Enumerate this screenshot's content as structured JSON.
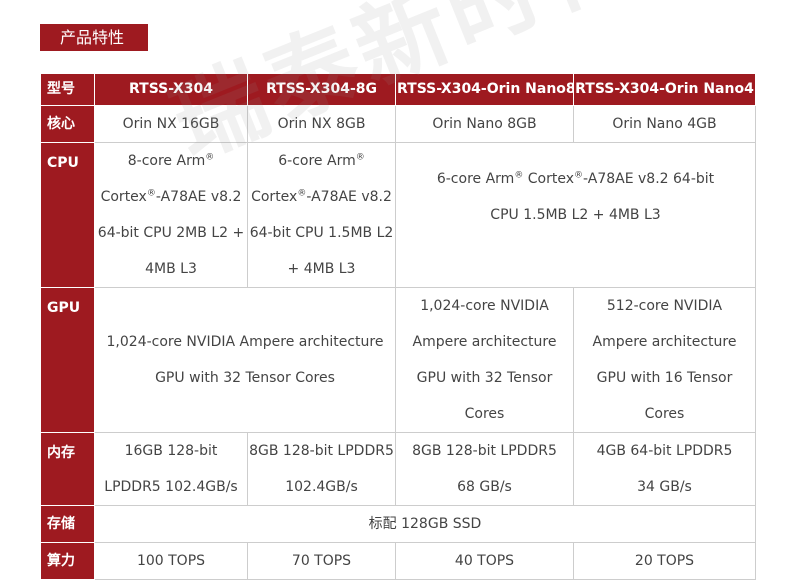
{
  "section_title": "产品特性",
  "watermark": "瑞泰新时代",
  "headers": [
    "型号",
    "RTSS-X304",
    "RTSS-X304-8G",
    "RTSS-X304-Orin Nano8",
    "RTSS-X304-Orin Nano4"
  ],
  "rows": {
    "core": {
      "label": "核心",
      "values": [
        "Orin NX 16GB",
        "Orin NX 8GB",
        "Orin Nano 8GB",
        "Orin Nano 4GB"
      ]
    },
    "cpu": {
      "label": "CPU",
      "col1": [
        "8-core Arm®",
        "Cortex®-A78AE v8.2",
        "64-bit CPU 2MB L2 +",
        "4MB L3"
      ],
      "col2": [
        "6-core Arm®",
        "Cortex®-A78AE v8.2",
        "64-bit CPU 1.5MB L2",
        "+ 4MB L3"
      ],
      "col34": [
        "6-core Arm® Cortex®-A78AE v8.2 64-bit",
        "CPU   1.5MB L2 + 4MB L3"
      ]
    },
    "gpu": {
      "label": "GPU",
      "col12": [
        "1,024-core NVIDIA Ampere architecture",
        "GPU    with 32 Tensor Cores"
      ],
      "col3": [
        "1,024-core NVIDIA",
        "Ampere architecture",
        "GPU with 32 Tensor",
        "Cores"
      ],
      "col4": [
        "512-core NVIDIA",
        "Ampere architecture",
        "GPU with 16 Tensor",
        "Cores"
      ]
    },
    "memory": {
      "label": "内存",
      "col1": [
        "16GB 128-bit",
        "LPDDR5 102.4GB/s"
      ],
      "col2": [
        "8GB 128-bit LPDDR5",
        "102.4GB/s"
      ],
      "col3": [
        "8GB 128-bit LPDDR5",
        "68 GB/s"
      ],
      "col4": [
        "4GB 64-bit LPDDR5",
        "34 GB/s"
      ]
    },
    "storage": {
      "label": "存储",
      "value": "标配 128GB SSD"
    },
    "compute": {
      "label": "算力",
      "values": [
        "100 TOPS",
        "70 TOPS",
        "40 TOPS",
        "20 TOPS"
      ]
    }
  }
}
